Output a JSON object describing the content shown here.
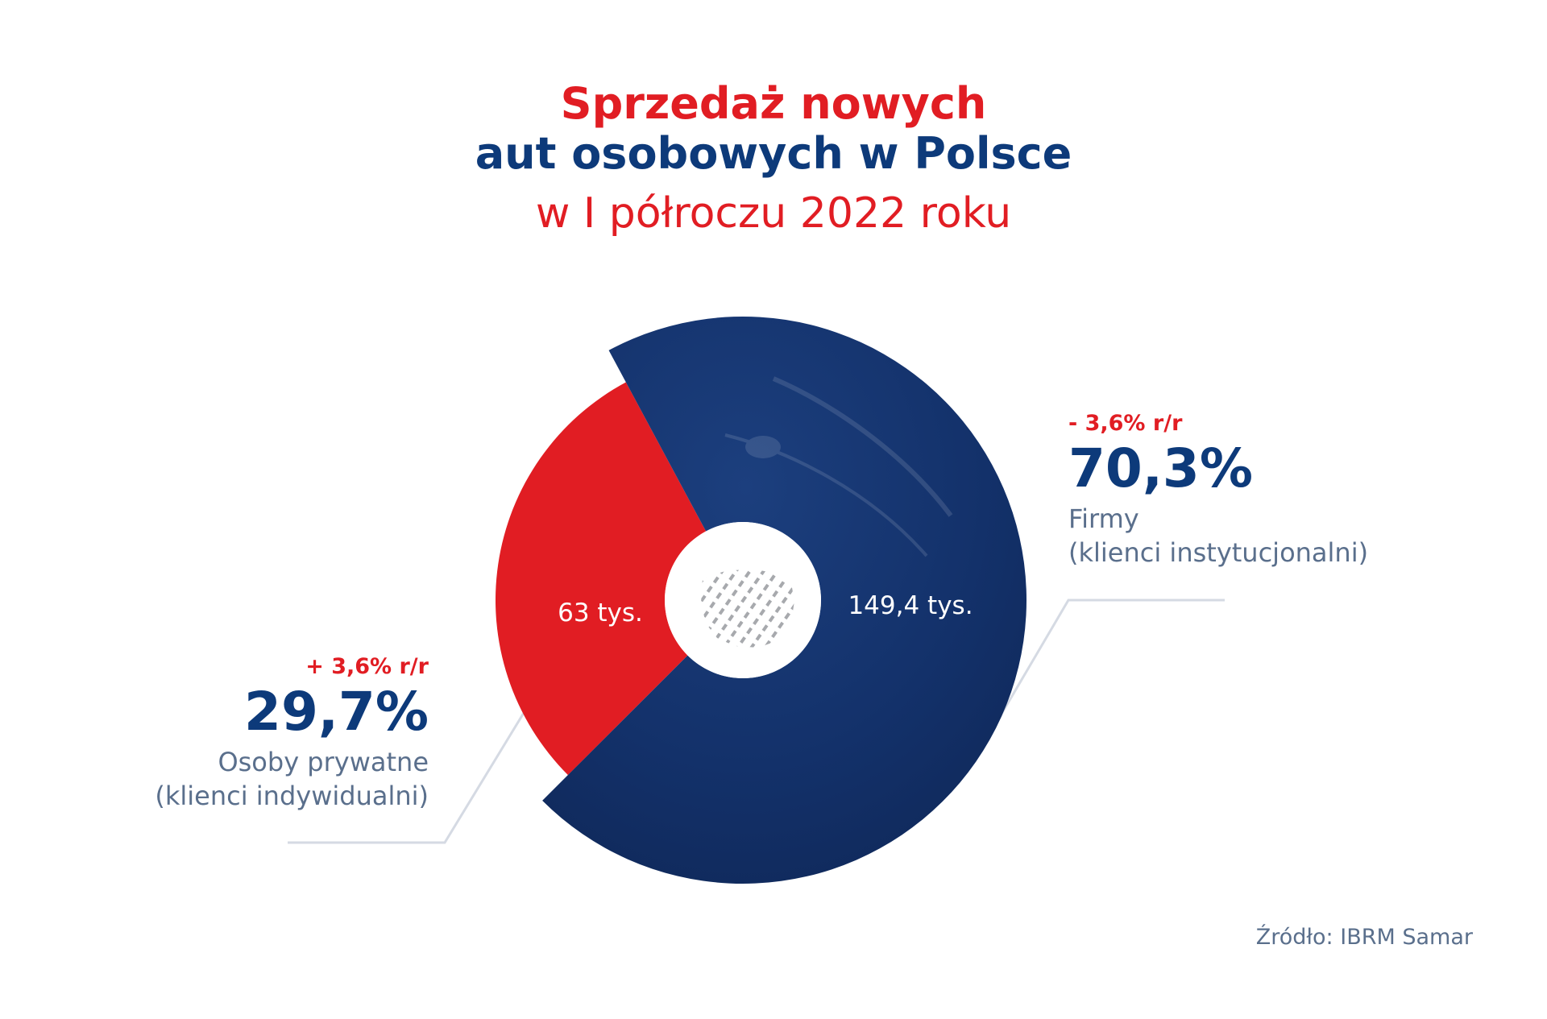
{
  "title": {
    "line1": "Sprzedaż nowych",
    "line2": "aut osobowych w Polsce",
    "line3": "w I półroczu 2022 roku"
  },
  "chart_data": {
    "type": "pie",
    "title": "Sprzedaż nowych aut osobowych w Polsce w I półroczu 2022 roku",
    "unit": "tys.",
    "slices": [
      {
        "name": "Osoby prywatne (klienci indywidualni)",
        "value": 63,
        "value_label": "63 tys.",
        "share_label": "29,7%",
        "change_label": "+ 3,6% r/r",
        "desc_line1": "Osoby prywatne",
        "desc_line2": "(klienci indywidualni)",
        "color": "#e11d23"
      },
      {
        "name": "Firmy (klienci instytucjonalni)",
        "value": 149.4,
        "value_label": "149,4 tys.",
        "share_label": "70,3%",
        "change_label": "- 3,6% r/r",
        "desc_line1": "Firmy",
        "desc_line2": "(klienci instytucjonalni)",
        "color": "#13316a"
      }
    ],
    "colors": {
      "accent_red": "#e11d23",
      "dark_blue": "#0d3a7a",
      "text_gray": "#5a6f8c",
      "leader_line": "#d5dae3"
    },
    "center_icon": "poland-map-icon",
    "source": "Źródło: IBRM Samar"
  }
}
